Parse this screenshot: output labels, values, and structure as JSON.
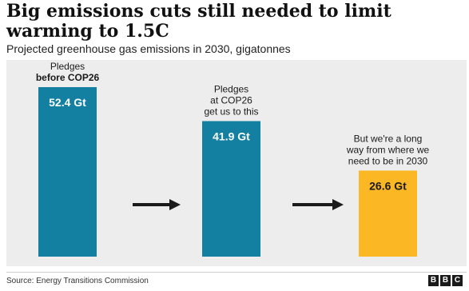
{
  "header": {
    "title": "Big emissions cuts still needed to limit warming to 1.5C",
    "subtitle": "Projected greenhouse gas emissions in 2030, gigatonnes"
  },
  "chart_data": {
    "type": "bar",
    "unit": "Gt",
    "categories": [
      [
        "Pledges",
        "before COP26"
      ],
      [
        "Pledges",
        "at COP26",
        "get us to this"
      ],
      [
        "But we're a long",
        "way from where we",
        "need to be in 2030"
      ]
    ],
    "values": [
      52.4,
      41.9,
      26.6
    ],
    "value_labels": [
      "52.4 Gt",
      "41.9 Gt",
      "26.6 Gt"
    ],
    "colors": [
      "#1380a1",
      "#1380a1",
      "#fbb724"
    ],
    "ylim": [
      0,
      52.4
    ],
    "grid": false,
    "legend": "none"
  },
  "footer": {
    "source": "Source: Energy Transitions Commission",
    "logo": [
      "B",
      "B",
      "C"
    ]
  },
  "colors": {
    "bar_blue": "#1380a1",
    "bar_yellow": "#fbb724",
    "panel_bg": "#ededed",
    "arrow": "#1a1a1a"
  }
}
